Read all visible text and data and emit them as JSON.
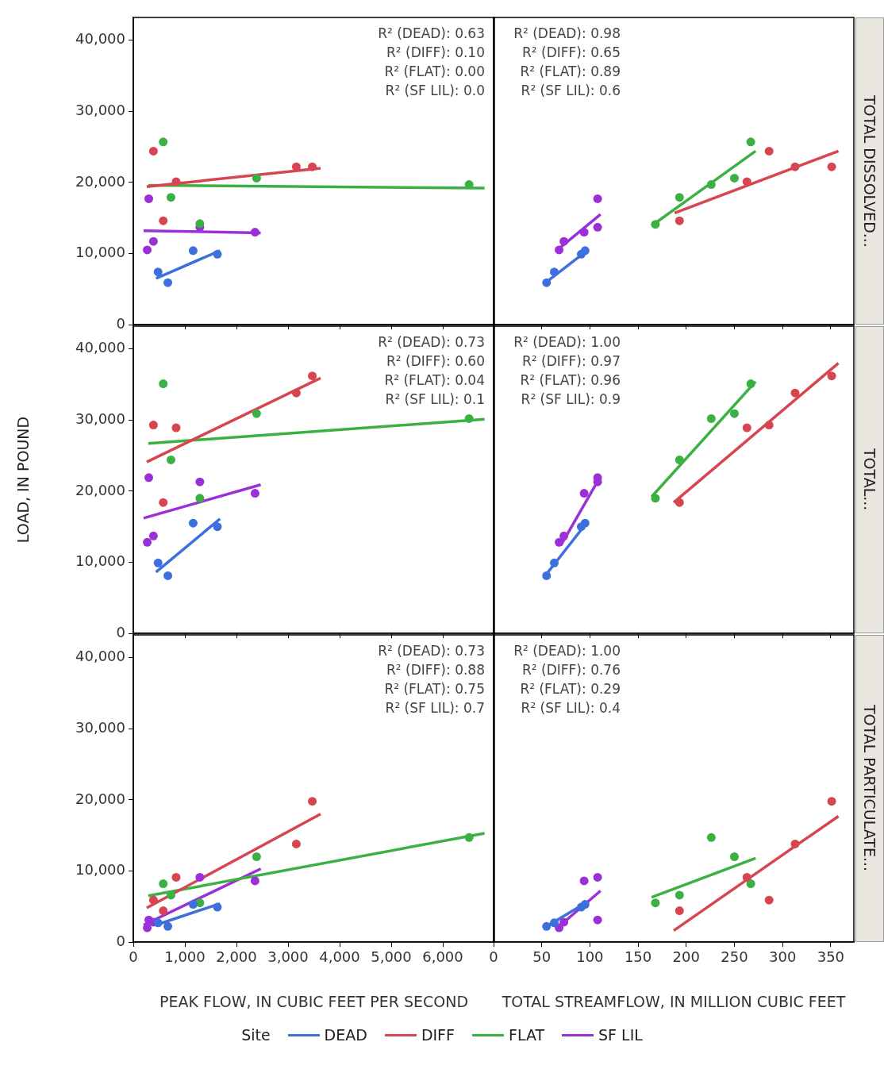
{
  "chart_data": [
    {
      "type": "scatter",
      "xlim": [
        0,
        7000
      ],
      "xticks": [
        {
          "value": 0,
          "label": null
        },
        {
          "value": 1000,
          "label": null
        },
        {
          "value": 2000,
          "label": null
        },
        {
          "value": 3000,
          "label": null
        },
        {
          "value": 4000,
          "label": null
        },
        {
          "value": 5000,
          "label": null
        },
        {
          "value": 6000,
          "label": null
        }
      ],
      "ylim": [
        0,
        43200
      ],
      "yticks": [
        {
          "value": 0,
          "label": "0"
        },
        {
          "value": 10000,
          "label": "10,000"
        },
        {
          "value": 20000,
          "label": "20,000"
        },
        {
          "value": 30000,
          "label": "30,000"
        },
        {
          "value": 40000,
          "label": "40,000"
        }
      ],
      "tick_labels": "y",
      "marker": "circle",
      "annotations": [
        "R² (DEAD): 0.63",
        "R² (DIFF): 0.10",
        "R² (FLAT): 0.00",
        "R² (SF LIL): 0.0"
      ],
      "series": [
        {
          "type": "scatter",
          "color": "#3d6fdd",
          "x": [
            480,
            670,
            1160,
            1630
          ],
          "values": [
            7400,
            5900,
            10400,
            9900
          ]
        },
        {
          "type": "scatter",
          "color": "#d64550",
          "x": [
            390,
            580,
            830,
            3160,
            3470
          ],
          "values": [
            24400,
            14600,
            20100,
            22200,
            22200
          ]
        },
        {
          "type": "scatter",
          "color": "#3bb143",
          "x": [
            580,
            730,
            1290,
            2390,
            6510
          ],
          "values": [
            25700,
            17900,
            14200,
            20600,
            19700
          ]
        },
        {
          "type": "scatter",
          "color": "#9b30d9",
          "x": [
            270,
            300,
            390,
            1290,
            2360
          ],
          "values": [
            10500,
            17700,
            11700,
            13700,
            13000
          ]
        },
        {
          "type": "line",
          "marker": "none",
          "color": "#3d6fdd",
          "x": [
            440,
            1680
          ],
          "values": [
            6500,
            10400
          ]
        },
        {
          "type": "line",
          "marker": "none",
          "color": "#d64550",
          "x": [
            260,
            3630
          ],
          "values": [
            19400,
            22000
          ]
        },
        {
          "type": "line",
          "marker": "none",
          "color": "#3bb143",
          "x": [
            290,
            6810
          ],
          "values": [
            19600,
            19200
          ]
        },
        {
          "type": "line",
          "marker": "none",
          "color": "#9b30d9",
          "x": [
            200,
            2470
          ],
          "values": [
            13200,
            12900
          ]
        }
      ]
    },
    {
      "type": "scatter",
      "xlim": [
        0,
        374
      ],
      "xticks": [
        {
          "value": 0,
          "label": null
        },
        {
          "value": 50,
          "label": null
        },
        {
          "value": 100,
          "label": null
        },
        {
          "value": 150,
          "label": null
        },
        {
          "value": 200,
          "label": null
        },
        {
          "value": 250,
          "label": null
        },
        {
          "value": 300,
          "label": null
        },
        {
          "value": 350,
          "label": null
        }
      ],
      "ylim": [
        0,
        43200
      ],
      "yticks": [
        {
          "value": 0,
          "label": null
        },
        {
          "value": 10000,
          "label": null
        },
        {
          "value": 20000,
          "label": null
        },
        {
          "value": 30000,
          "label": null
        },
        {
          "value": 40000,
          "label": null
        }
      ],
      "tick_labels": false,
      "marker": "circle",
      "y2label": "TOTAL DISSOLVED...",
      "annotations": [
        "R² (DEAD): 0.98",
        "R² (DIFF): 0.65",
        "R² (FLAT): 0.89",
        "R² (SF LIL): 0.6"
      ],
      "series": [
        {
          "type": "scatter",
          "color": "#3d6fdd",
          "x": [
            55,
            63,
            91,
            95
          ],
          "values": [
            5900,
            7400,
            9900,
            10400
          ]
        },
        {
          "type": "scatter",
          "color": "#d64550",
          "x": [
            193,
            263,
            286,
            313,
            351
          ],
          "values": [
            14600,
            20100,
            24400,
            22200,
            22200
          ]
        },
        {
          "type": "scatter",
          "color": "#3bb143",
          "x": [
            168,
            193,
            226,
            250,
            267
          ],
          "values": [
            14100,
            17900,
            19700,
            20600,
            25700
          ]
        },
        {
          "type": "scatter",
          "color": "#9b30d9",
          "x": [
            68,
            73,
            94,
            108,
            108
          ],
          "values": [
            10500,
            11700,
            13000,
            17700,
            13700
          ]
        },
        {
          "type": "line",
          "marker": "none",
          "color": "#3d6fdd",
          "x": [
            53,
            98
          ],
          "values": [
            5800,
            10500
          ]
        },
        {
          "type": "line",
          "marker": "none",
          "color": "#d64550",
          "x": [
            188,
            358
          ],
          "values": [
            15700,
            24400
          ]
        },
        {
          "type": "line",
          "marker": "none",
          "color": "#3bb143",
          "x": [
            164,
            272
          ],
          "values": [
            13900,
            24400
          ]
        },
        {
          "type": "line",
          "marker": "none",
          "color": "#9b30d9",
          "x": [
            68,
            111
          ],
          "values": [
            10700,
            15500
          ]
        }
      ]
    },
    {
      "type": "scatter",
      "xlim": [
        0,
        7000
      ],
      "xticks": [
        {
          "value": 0,
          "label": null
        },
        {
          "value": 1000,
          "label": null
        },
        {
          "value": 2000,
          "label": null
        },
        {
          "value": 3000,
          "label": null
        },
        {
          "value": 4000,
          "label": null
        },
        {
          "value": 5000,
          "label": null
        },
        {
          "value": 6000,
          "label": null
        }
      ],
      "ylim": [
        0,
        43200
      ],
      "yticks": [
        {
          "value": 0,
          "label": "0"
        },
        {
          "value": 10000,
          "label": "10,000"
        },
        {
          "value": 20000,
          "label": "20,000"
        },
        {
          "value": 30000,
          "label": "30,000"
        },
        {
          "value": 40000,
          "label": "40,000"
        }
      ],
      "tick_labels": "y",
      "marker": "circle",
      "ylabel": "LOAD, IN POUND",
      "annotations": [
        "R² (DEAD): 0.73",
        "R² (DIFF): 0.60",
        "R² (FLAT): 0.04",
        "R² (SF LIL): 0.1"
      ],
      "series": [
        {
          "type": "scatter",
          "color": "#3d6fdd",
          "x": [
            480,
            670,
            1160,
            1630
          ],
          "values": [
            9900,
            8100,
            15500,
            15000
          ]
        },
        {
          "type": "scatter",
          "color": "#d64550",
          "x": [
            390,
            580,
            830,
            3160,
            3470
          ],
          "values": [
            29300,
            18400,
            28900,
            33800,
            36200
          ]
        },
        {
          "type": "scatter",
          "color": "#3bb143",
          "x": [
            580,
            730,
            1290,
            2390,
            6510
          ],
          "values": [
            35100,
            24400,
            19000,
            30900,
            30200
          ]
        },
        {
          "type": "scatter",
          "color": "#9b30d9",
          "x": [
            270,
            300,
            390,
            1290,
            2360
          ],
          "values": [
            12800,
            21900,
            13700,
            21300,
            19700
          ]
        },
        {
          "type": "line",
          "marker": "none",
          "color": "#3d6fdd",
          "x": [
            440,
            1680
          ],
          "values": [
            8600,
            16100
          ]
        },
        {
          "type": "line",
          "marker": "none",
          "color": "#d64550",
          "x": [
            260,
            3630
          ],
          "values": [
            24100,
            35900
          ]
        },
        {
          "type": "line",
          "marker": "none",
          "color": "#3bb143",
          "x": [
            290,
            6810
          ],
          "values": [
            26700,
            30100
          ]
        },
        {
          "type": "line",
          "marker": "none",
          "color": "#9b30d9",
          "x": [
            200,
            2470
          ],
          "values": [
            16200,
            20900
          ]
        }
      ]
    },
    {
      "type": "scatter",
      "xlim": [
        0,
        374
      ],
      "xticks": [
        {
          "value": 0,
          "label": null
        },
        {
          "value": 50,
          "label": null
        },
        {
          "value": 100,
          "label": null
        },
        {
          "value": 150,
          "label": null
        },
        {
          "value": 200,
          "label": null
        },
        {
          "value": 250,
          "label": null
        },
        {
          "value": 300,
          "label": null
        },
        {
          "value": 350,
          "label": null
        }
      ],
      "ylim": [
        0,
        43200
      ],
      "yticks": [
        {
          "value": 0,
          "label": null
        },
        {
          "value": 10000,
          "label": null
        },
        {
          "value": 20000,
          "label": null
        },
        {
          "value": 30000,
          "label": null
        },
        {
          "value": 40000,
          "label": null
        }
      ],
      "tick_labels": false,
      "marker": "circle",
      "y2label": "TOTAL...",
      "annotations": [
        "R² (DEAD): 1.00",
        "R² (DIFF): 0.97",
        "R² (FLAT): 0.96",
        "R² (SF LIL): 0.9"
      ],
      "series": [
        {
          "type": "scatter",
          "color": "#3d6fdd",
          "x": [
            55,
            63,
            91,
            95
          ],
          "values": [
            8100,
            9900,
            15000,
            15500
          ]
        },
        {
          "type": "scatter",
          "color": "#d64550",
          "x": [
            193,
            263,
            286,
            313,
            351
          ],
          "values": [
            18400,
            28900,
            29300,
            33800,
            36200
          ]
        },
        {
          "type": "scatter",
          "color": "#3bb143",
          "x": [
            168,
            193,
            226,
            250,
            267
          ],
          "values": [
            19000,
            24400,
            30200,
            30900,
            35100
          ]
        },
        {
          "type": "scatter",
          "color": "#9b30d9",
          "x": [
            68,
            73,
            94,
            108,
            108
          ],
          "values": [
            12800,
            13700,
            19700,
            21900,
            21300
          ]
        },
        {
          "type": "line",
          "marker": "none",
          "color": "#3d6fdd",
          "x": [
            53,
            97
          ],
          "values": [
            8000,
            15600
          ]
        },
        {
          "type": "line",
          "marker": "none",
          "color": "#d64550",
          "x": [
            187,
            358
          ],
          "values": [
            18400,
            38000
          ]
        },
        {
          "type": "line",
          "marker": "none",
          "color": "#3bb143",
          "x": [
            164,
            272
          ],
          "values": [
            19200,
            35400
          ]
        },
        {
          "type": "line",
          "marker": "none",
          "color": "#9b30d9",
          "x": [
            70,
            111
          ],
          "values": [
            12400,
            22100
          ]
        }
      ]
    },
    {
      "type": "scatter",
      "xlim": [
        0,
        7000
      ],
      "xticks": [
        {
          "value": 0,
          "label": "0"
        },
        {
          "value": 1000,
          "label": "1,000"
        },
        {
          "value": 2000,
          "label": "2,000"
        },
        {
          "value": 3000,
          "label": "3,000"
        },
        {
          "value": 4000,
          "label": "4,000"
        },
        {
          "value": 5000,
          "label": "5,000"
        },
        {
          "value": 6000,
          "label": "6,000"
        }
      ],
      "ylim": [
        0,
        43200
      ],
      "yticks": [
        {
          "value": 0,
          "label": "0"
        },
        {
          "value": 10000,
          "label": "10,000"
        },
        {
          "value": 20000,
          "label": "20,000"
        },
        {
          "value": 30000,
          "label": "30,000"
        },
        {
          "value": 40000,
          "label": "40,000"
        }
      ],
      "marker": "circle",
      "xlabel": "PEAK FLOW, IN CUBIC FEET PER SECOND",
      "legend": "bottom",
      "legend_title": "Site",
      "annotations": [
        "R² (DEAD): 0.73",
        "R² (DIFF): 0.88",
        "R² (FLAT): 0.75",
        "R² (SF LIL): 0.7"
      ],
      "series": [
        {
          "type": "scatter",
          "color": "#3d6fdd",
          "x": [
            480,
            670,
            1160,
            1630
          ],
          "values": [
            2700,
            2200,
            5300,
            4900
          ]
        },
        {
          "type": "scatter",
          "color": "#d64550",
          "x": [
            390,
            580,
            830,
            3160,
            3470
          ],
          "values": [
            5900,
            4400,
            9100,
            13800,
            19800
          ]
        },
        {
          "type": "scatter",
          "color": "#3bb143",
          "x": [
            580,
            730,
            1290,
            2390,
            6510
          ],
          "values": [
            8200,
            6600,
            5500,
            12000,
            14700
          ]
        },
        {
          "type": "scatter",
          "color": "#9b30d9",
          "x": [
            270,
            300,
            390,
            1290,
            2360
          ],
          "values": [
            2000,
            3100,
            2800,
            9100,
            8600
          ]
        },
        {
          "type": "line",
          "marker": "none",
          "name": "DEAD",
          "color": "#3d6fdd",
          "x": [
            440,
            1680
          ],
          "values": [
            2400,
            5400
          ]
        },
        {
          "type": "line",
          "marker": "none",
          "name": "DIFF",
          "color": "#d64550",
          "x": [
            260,
            3630
          ],
          "values": [
            4800,
            18000
          ]
        },
        {
          "type": "line",
          "marker": "none",
          "name": "FLAT",
          "color": "#3bb143",
          "x": [
            290,
            6810
          ],
          "values": [
            6500,
            15300
          ]
        },
        {
          "type": "line",
          "marker": "none",
          "name": "SF LIL",
          "color": "#9b30d9",
          "x": [
            200,
            2470
          ],
          "values": [
            2400,
            10300
          ]
        }
      ]
    },
    {
      "type": "scatter",
      "xlim": [
        0,
        374
      ],
      "xticks": [
        {
          "value": 0,
          "label": "0"
        },
        50,
        100,
        150,
        200,
        250,
        300,
        350
      ],
      "ylim": [
        0,
        43200
      ],
      "yticks": [
        {
          "value": 0,
          "label": null
        },
        {
          "value": 10000,
          "label": null
        },
        {
          "value": 20000,
          "label": null
        },
        {
          "value": 30000,
          "label": null
        },
        {
          "value": 40000,
          "label": null
        }
      ],
      "tick_labels": "x",
      "marker": "circle",
      "xlabel": "TOTAL STREAMFLOW, IN MILLION CUBIC FEET",
      "y2label": "TOTAL PARTICULATE...",
      "annotations": [
        "R² (DEAD): 1.00",
        "R² (DIFF): 0.76",
        "R² (FLAT): 0.29",
        "R² (SF LIL): 0.4"
      ],
      "series": [
        {
          "type": "scatter",
          "color": "#3d6fdd",
          "x": [
            55,
            63,
            91,
            95
          ],
          "values": [
            2200,
            2700,
            4900,
            5300
          ]
        },
        {
          "type": "scatter",
          "color": "#d64550",
          "x": [
            193,
            263,
            286,
            313,
            351
          ],
          "values": [
            4400,
            9100,
            5900,
            13800,
            19800
          ]
        },
        {
          "type": "scatter",
          "color": "#3bb143",
          "x": [
            168,
            193,
            226,
            250,
            267
          ],
          "values": [
            5500,
            6600,
            14700,
            12000,
            8200
          ]
        },
        {
          "type": "scatter",
          "color": "#9b30d9",
          "x": [
            68,
            73,
            94,
            108,
            108
          ],
          "values": [
            2000,
            2800,
            8600,
            9100,
            3100
          ]
        },
        {
          "type": "line",
          "marker": "none",
          "color": "#3d6fdd",
          "x": [
            55,
            97
          ],
          "values": [
            2200,
            5600
          ]
        },
        {
          "type": "line",
          "marker": "none",
          "color": "#d64550",
          "x": [
            187,
            358
          ],
          "values": [
            1600,
            17700
          ]
        },
        {
          "type": "line",
          "marker": "none",
          "color": "#3bb143",
          "x": [
            164,
            272
          ],
          "values": [
            6300,
            11800
          ]
        },
        {
          "type": "line",
          "marker": "none",
          "color": "#9b30d9",
          "x": [
            68,
            111
          ],
          "values": [
            2200,
            7200
          ]
        }
      ]
    }
  ]
}
